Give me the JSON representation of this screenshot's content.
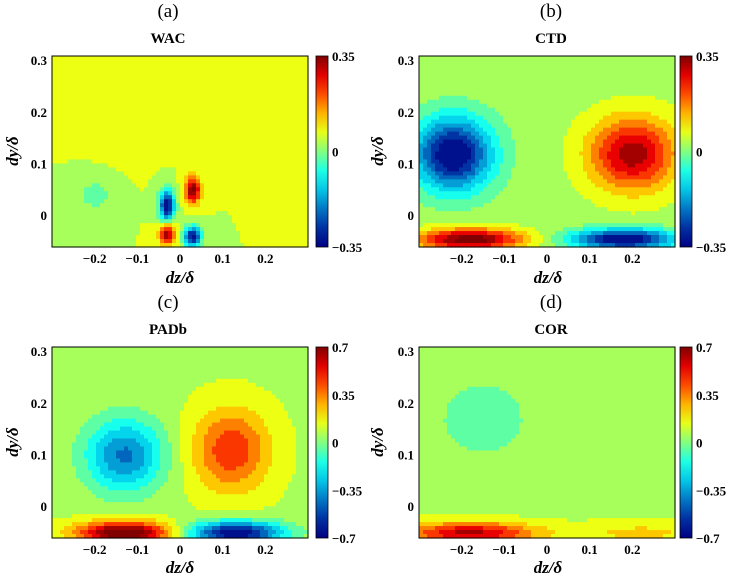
{
  "chart_data": [
    {
      "type": "heatmap",
      "panel_label": "(a)",
      "title": "WAC",
      "xlabel": "dz/δ",
      "ylabel": "dy/δ",
      "xlim": [
        -0.3,
        0.3
      ],
      "ylim": [
        -0.06,
        0.31
      ],
      "x_ticks": [
        {
          "value": -0.2,
          "label": "−0.2"
        },
        {
          "value": -0.1,
          "label": "−0.1"
        },
        {
          "value": 0,
          "label": "0"
        },
        {
          "value": 0.1,
          "label": "0.1"
        },
        {
          "value": 0.2,
          "label": "0.2"
        }
      ],
      "y_ticks": [
        {
          "value": 0,
          "label": "0"
        },
        {
          "value": 0.1,
          "label": "0.1"
        },
        {
          "value": 0.2,
          "label": "0.2"
        },
        {
          "value": 0.3,
          "label": "0.3"
        }
      ],
      "colorbar": {
        "range": [
          -0.35,
          0.35
        ],
        "ticks": [
          {
            "value": 0.35,
            "label": "0.35"
          },
          {
            "value": 0,
            "label": "0"
          },
          {
            "value": -0.35,
            "label": "−0.35"
          }
        ]
      },
      "background": 0.05,
      "features": [
        {
          "x": -0.03,
          "y": 0.02,
          "sx": 0.018,
          "sy": 0.03,
          "amp": -0.4
        },
        {
          "x": 0.03,
          "y": 0.05,
          "sx": 0.018,
          "sy": 0.025,
          "amp": 0.32
        },
        {
          "x": -0.03,
          "y": -0.035,
          "sx": 0.018,
          "sy": 0.02,
          "amp": 0.3
        },
        {
          "x": 0.03,
          "y": -0.04,
          "sx": 0.02,
          "sy": 0.02,
          "amp": -0.38
        },
        {
          "x": -0.2,
          "y": 0.04,
          "sx": 0.04,
          "sy": 0.03,
          "amp": -0.08
        },
        {
          "x": -0.1,
          "y": 0.18,
          "sx": 0.08,
          "sy": 0.05,
          "amp": 0.03
        }
      ]
    },
    {
      "type": "heatmap",
      "panel_label": "(b)",
      "title": "CTD",
      "xlabel": "dz/δ",
      "ylabel": "dy/δ",
      "xlim": [
        -0.3,
        0.3
      ],
      "ylim": [
        -0.06,
        0.31
      ],
      "x_ticks": [
        {
          "value": -0.2,
          "label": "−0.2"
        },
        {
          "value": -0.1,
          "label": "−0.1"
        },
        {
          "value": 0,
          "label": "0"
        },
        {
          "value": 0.1,
          "label": "0.1"
        },
        {
          "value": 0.2,
          "label": "0.2"
        }
      ],
      "y_ticks": [
        {
          "value": 0,
          "label": "0"
        },
        {
          "value": 0.1,
          "label": "0.1"
        },
        {
          "value": 0.2,
          "label": "0.2"
        },
        {
          "value": 0.3,
          "label": "0.3"
        }
      ],
      "colorbar": {
        "range": [
          -0.35,
          0.35
        ],
        "ticks": [
          {
            "value": 0.35,
            "label": "0.35"
          },
          {
            "value": 0,
            "label": "0"
          },
          {
            "value": -0.35,
            "label": "−0.35"
          }
        ]
      },
      "background": 0.03,
      "features": [
        {
          "x": -0.22,
          "y": 0.12,
          "sx": 0.09,
          "sy": 0.07,
          "amp": -0.4
        },
        {
          "x": 0.2,
          "y": 0.12,
          "sx": 0.1,
          "sy": 0.07,
          "amp": 0.3
        },
        {
          "x": -0.18,
          "y": -0.045,
          "sx": 0.12,
          "sy": 0.02,
          "amp": 0.36
        },
        {
          "x": 0.18,
          "y": -0.045,
          "sx": 0.12,
          "sy": 0.02,
          "amp": -0.4
        },
        {
          "x": 0.0,
          "y": 0.25,
          "sx": 0.05,
          "sy": 0.05,
          "amp": 0.02
        }
      ]
    },
    {
      "type": "heatmap",
      "panel_label": "(c)",
      "title": "PADb",
      "xlabel": "dz/δ",
      "ylabel": "dy/δ",
      "xlim": [
        -0.3,
        0.3
      ],
      "ylim": [
        -0.06,
        0.31
      ],
      "x_ticks": [
        {
          "value": -0.2,
          "label": "−0.2"
        },
        {
          "value": -0.1,
          "label": "−0.1"
        },
        {
          "value": 0,
          "label": "0"
        },
        {
          "value": 0.1,
          "label": "0.1"
        },
        {
          "value": 0.2,
          "label": "0.2"
        }
      ],
      "y_ticks": [
        {
          "value": 0,
          "label": "0"
        },
        {
          "value": 0.1,
          "label": "0.1"
        },
        {
          "value": 0.2,
          "label": "0.2"
        },
        {
          "value": 0.3,
          "label": "0.3"
        }
      ],
      "colorbar": {
        "range": [
          -0.7,
          0.7
        ],
        "ticks": [
          {
            "value": 0.7,
            "label": "0.7"
          },
          {
            "value": 0.35,
            "label": "0.35"
          },
          {
            "value": 0,
            "label": "0"
          },
          {
            "value": -0.35,
            "label": "−0.35"
          },
          {
            "value": -0.7,
            "label": "−0.7"
          }
        ]
      },
      "background": 0.08,
      "features": [
        {
          "x": -0.13,
          "y": 0.1,
          "sx": 0.09,
          "sy": 0.07,
          "amp": -0.5
        },
        {
          "x": 0.12,
          "y": 0.11,
          "sx": 0.09,
          "sy": 0.08,
          "amp": 0.4
        },
        {
          "x": -0.13,
          "y": -0.05,
          "sx": 0.11,
          "sy": 0.022,
          "amp": 0.75
        },
        {
          "x": 0.13,
          "y": -0.05,
          "sx": 0.11,
          "sy": 0.022,
          "amp": -0.8
        }
      ]
    },
    {
      "type": "heatmap",
      "panel_label": "(d)",
      "title": "COR",
      "xlabel": "dz/δ",
      "ylabel": "dy/δ",
      "xlim": [
        -0.3,
        0.3
      ],
      "ylim": [
        -0.06,
        0.31
      ],
      "x_ticks": [
        {
          "value": -0.2,
          "label": "−0.2"
        },
        {
          "value": -0.1,
          "label": "−0.1"
        },
        {
          "value": 0,
          "label": "0"
        },
        {
          "value": 0.1,
          "label": "0.1"
        },
        {
          "value": 0.2,
          "label": "0.2"
        }
      ],
      "y_ticks": [
        {
          "value": 0,
          "label": "0"
        },
        {
          "value": 0.1,
          "label": "0.1"
        },
        {
          "value": 0.2,
          "label": "0.2"
        },
        {
          "value": 0.3,
          "label": "0.3"
        }
      ],
      "colorbar": {
        "range": [
          -0.7,
          0.7
        ],
        "ticks": [
          {
            "value": 0.7,
            "label": "0.7"
          },
          {
            "value": 0.35,
            "label": "0.35"
          },
          {
            "value": 0,
            "label": "0"
          },
          {
            "value": -0.35,
            "label": "−0.35"
          },
          {
            "value": -0.7,
            "label": "−0.7"
          }
        ]
      },
      "background": 0.08,
      "features": [
        {
          "x": -0.15,
          "y": 0.17,
          "sx": 0.14,
          "sy": 0.1,
          "amp": -0.12
        },
        {
          "x": -0.18,
          "y": -0.05,
          "sx": 0.15,
          "sy": 0.02,
          "amp": 0.55
        },
        {
          "x": 0.22,
          "y": -0.05,
          "sx": 0.15,
          "sy": 0.02,
          "amp": 0.15
        }
      ]
    }
  ]
}
